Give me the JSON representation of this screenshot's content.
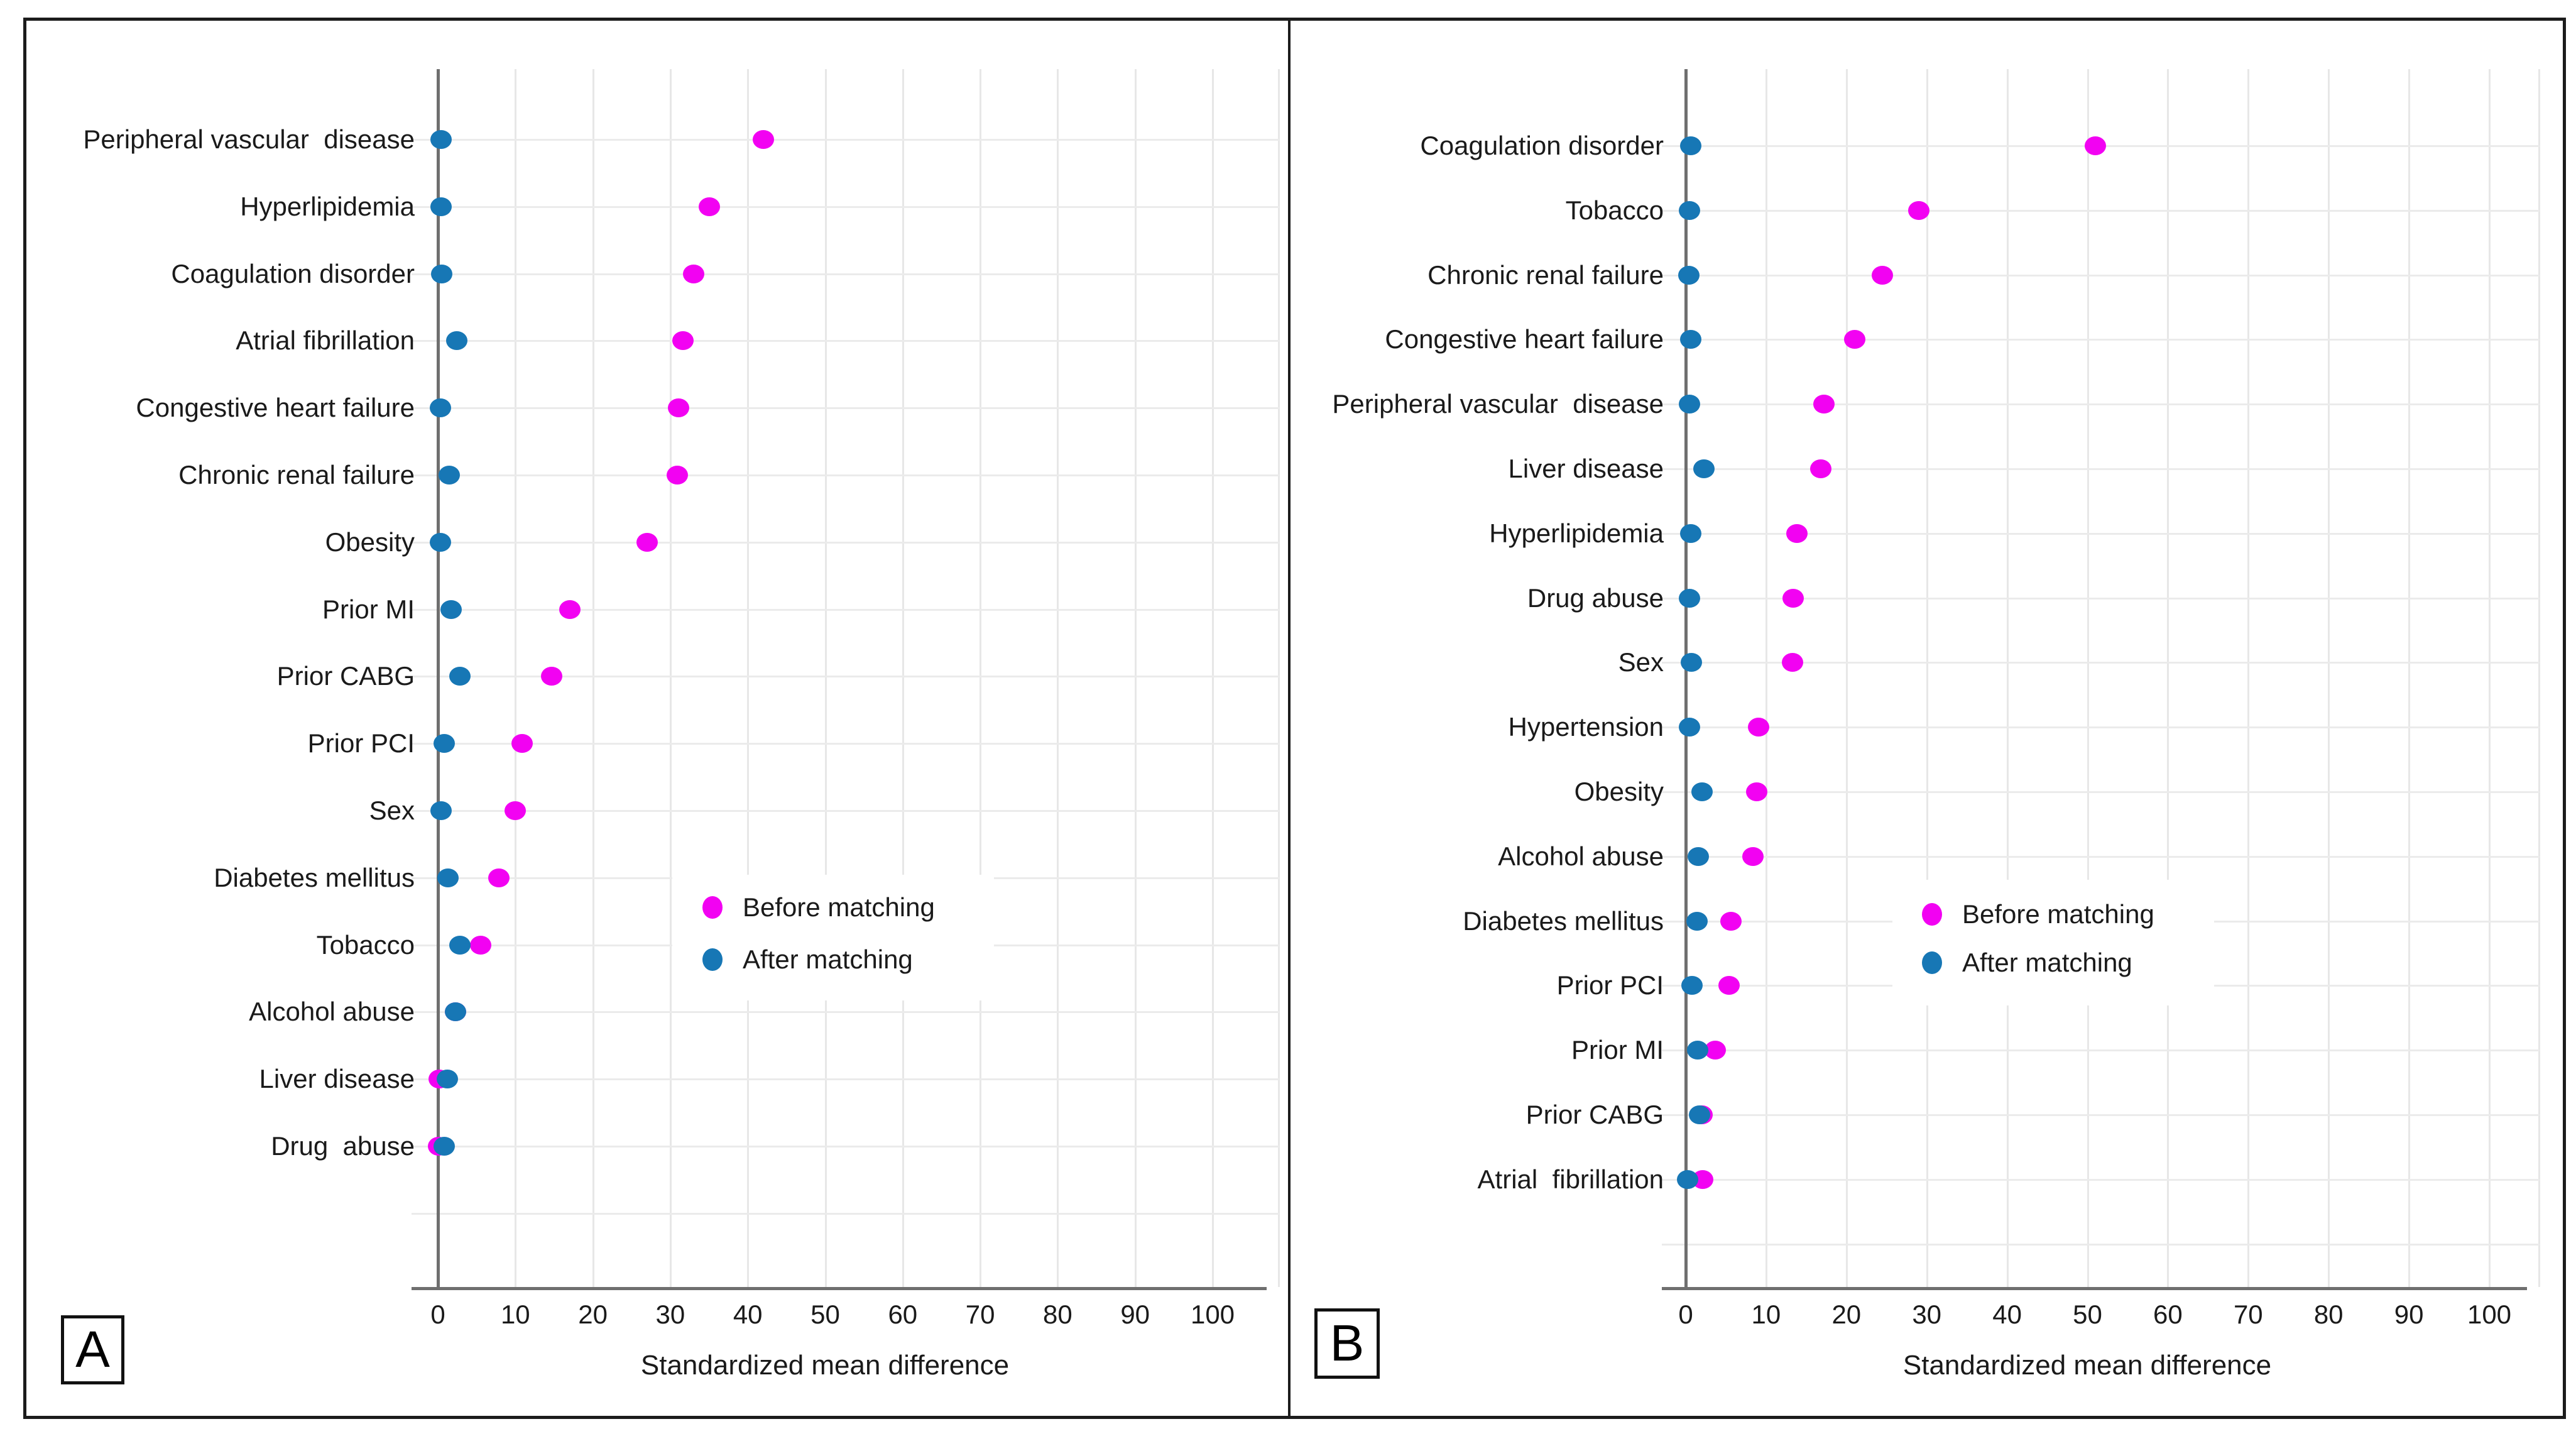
{
  "figure": {
    "background": "#ffffff",
    "border_color": "#1c1c1c",
    "colors": {
      "before": "#f202f2",
      "after": "#1777b5"
    },
    "axis_label": "Standardized mean difference",
    "legend": {
      "before": "Before matching",
      "after": "After matching"
    }
  },
  "chart_data": [
    {
      "type": "scatter",
      "panel_label": "A",
      "title": "",
      "xlabel": "Standardized mean difference",
      "ylabel": "",
      "xlim": [
        -3,
        108
      ],
      "x_ticks": [
        0,
        10,
        20,
        30,
        40,
        50,
        60,
        70,
        80,
        90,
        100
      ],
      "grid": true,
      "legend_position": "center-right",
      "legend_entries": [
        "Before matching",
        "After matching"
      ],
      "categories": [
        "Peripheral vascular  disease",
        "Hyperlipidemia",
        "Coagulation disorder",
        "Atrial fibrillation",
        "Congestive heart failure",
        "Chronic renal failure",
        "Obesity",
        "Prior MI",
        "Prior CABG",
        "Prior PCI",
        "Sex",
        "Diabetes mellitus",
        "Tobacco",
        "Alcohol abuse",
        "Liver disease",
        "Drug  abuse"
      ],
      "series": [
        {
          "name": "Before matching",
          "color_key": "before",
          "values": [
            42,
            35,
            33,
            31.6,
            31.1,
            30.9,
            27,
            17,
            14.7,
            10.9,
            10,
            7.9,
            5.5,
            2.3,
            0.2,
            0.1
          ]
        },
        {
          "name": "After matching",
          "color_key": "after",
          "values": [
            0.4,
            0.4,
            0.5,
            2.4,
            0.3,
            1.5,
            0.3,
            1.7,
            2.8,
            0.8,
            0.4,
            1.3,
            2.8,
            2.3,
            1.2,
            0.8
          ]
        }
      ]
    },
    {
      "type": "scatter",
      "panel_label": "B",
      "title": "",
      "xlabel": "Standardized mean difference",
      "ylabel": "",
      "xlim": [
        -3,
        106
      ],
      "x_ticks": [
        0,
        10,
        20,
        30,
        40,
        50,
        60,
        70,
        80,
        90,
        100
      ],
      "grid": true,
      "legend_position": "center-right",
      "legend_entries": [
        "Before matching",
        "After matching"
      ],
      "categories": [
        "Coagulation disorder",
        "Tobacco",
        "Chronic renal failure",
        "Congestive heart failure",
        "Peripheral vascular  disease",
        "Liver disease",
        "Hyperlipidemia",
        "Drug abuse",
        "Sex",
        "Hypertension",
        "Obesity",
        "Alcohol abuse",
        "Diabetes mellitus",
        "Prior PCI",
        "Prior MI",
        "Prior CABG",
        "Atrial  fibrillation"
      ],
      "series": [
        {
          "name": "Before matching",
          "color_key": "before",
          "values": [
            51,
            29,
            24.5,
            21,
            17.2,
            16.8,
            13.8,
            13.4,
            13.3,
            9.1,
            8.8,
            8.4,
            5.6,
            5.4,
            3.7,
            2.0,
            2.1
          ]
        },
        {
          "name": "After matching",
          "color_key": "after",
          "values": [
            0.6,
            0.5,
            0.4,
            0.6,
            0.5,
            2.3,
            0.6,
            0.5,
            0.7,
            0.5,
            2.0,
            1.6,
            1.4,
            0.8,
            1.5,
            1.7,
            0.2
          ]
        }
      ]
    }
  ]
}
